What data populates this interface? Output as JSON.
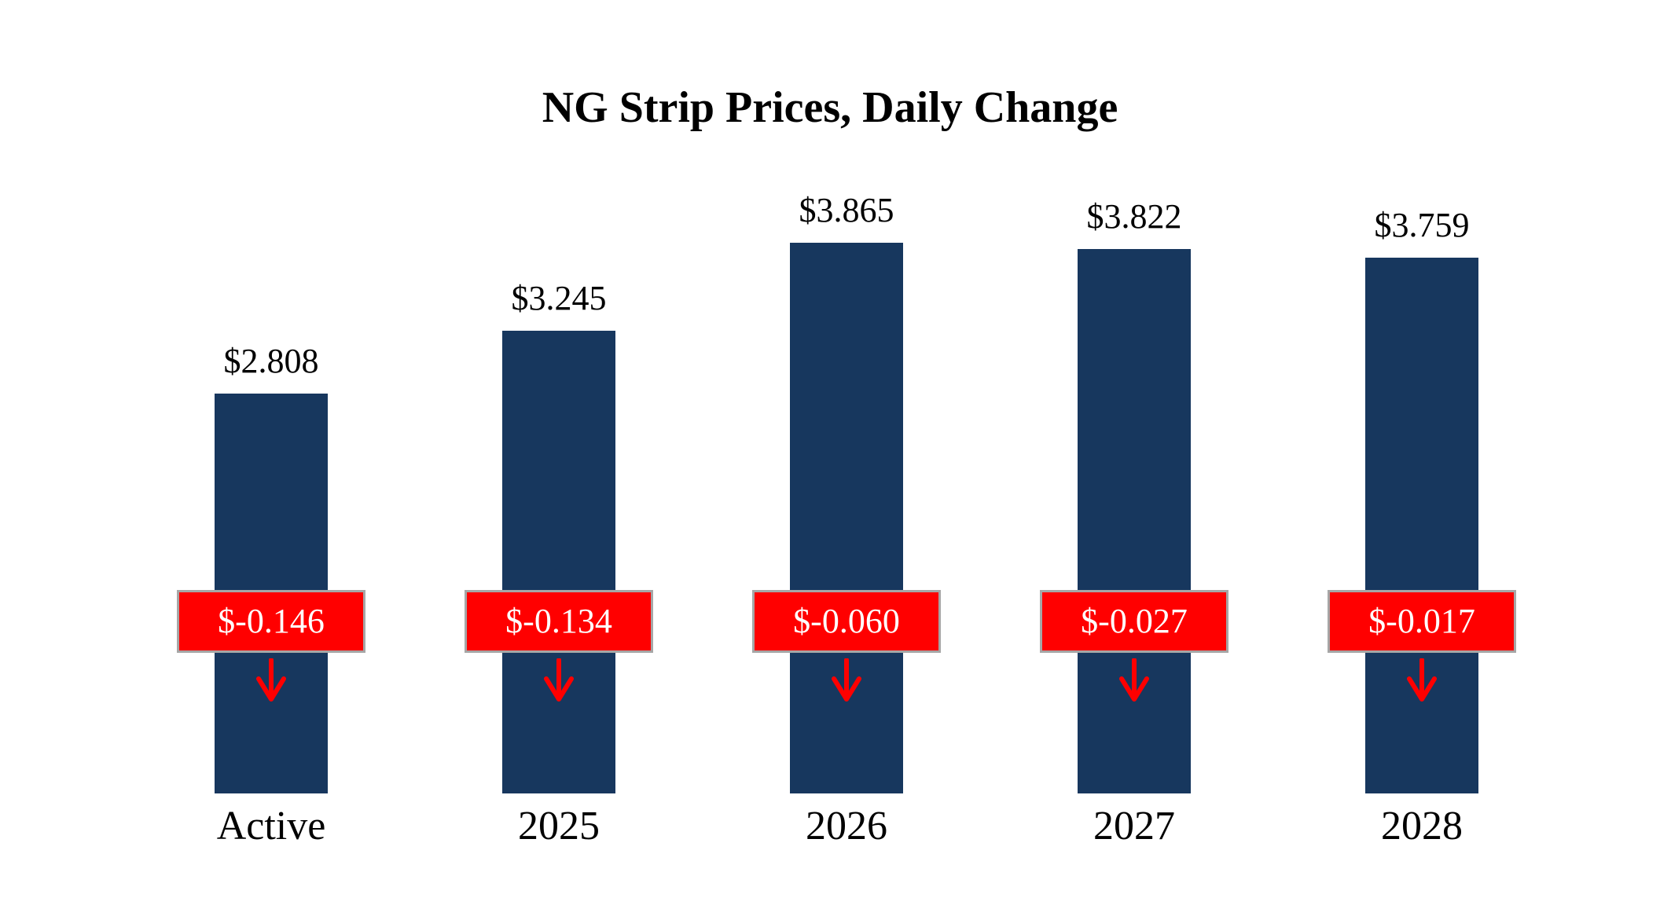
{
  "chart_data": {
    "type": "bar",
    "title": "NG Strip Prices, Daily Change",
    "categories": [
      "Active",
      "2025",
      "2026",
      "2027",
      "2028"
    ],
    "series": [
      {
        "name": "Strip Price",
        "values": [
          2.808,
          3.245,
          3.865,
          3.822,
          3.759
        ]
      },
      {
        "name": "Daily Change",
        "values": [
          -0.146,
          -0.134,
          -0.06,
          -0.027,
          -0.017
        ]
      }
    ],
    "price_labels": [
      "$2.808",
      "$3.245",
      "$3.865",
      "$3.822",
      "$3.759"
    ],
    "change_labels": [
      "$-0.146",
      "$-0.134",
      "$-0.060",
      "$-0.027",
      "$-0.017"
    ],
    "ylim": [
      0,
      4
    ],
    "grid": false,
    "legend_position": "none",
    "bar_color": "#17375e",
    "change_color": "#ff0000",
    "badge_border_color": "#a6a6a6",
    "change_direction_icon": "down-arrow"
  }
}
